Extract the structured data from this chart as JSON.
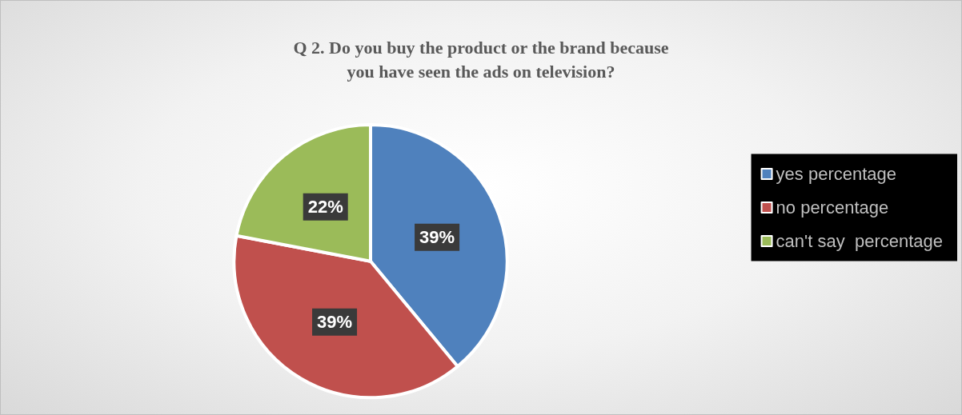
{
  "chart_data": {
    "type": "pie",
    "title": "Q 2. Do you buy the product or the brand because\nyou have seen the ads on television?",
    "categories": [
      "yes percentage",
      "no percentage",
      "can't say  percentage"
    ],
    "values": [
      39,
      39,
      22
    ],
    "colors": [
      "#4f81bd",
      "#c0504d",
      "#9bbb59"
    ],
    "value_labels": [
      "39%",
      "39%",
      "22%"
    ],
    "legend": "right"
  }
}
